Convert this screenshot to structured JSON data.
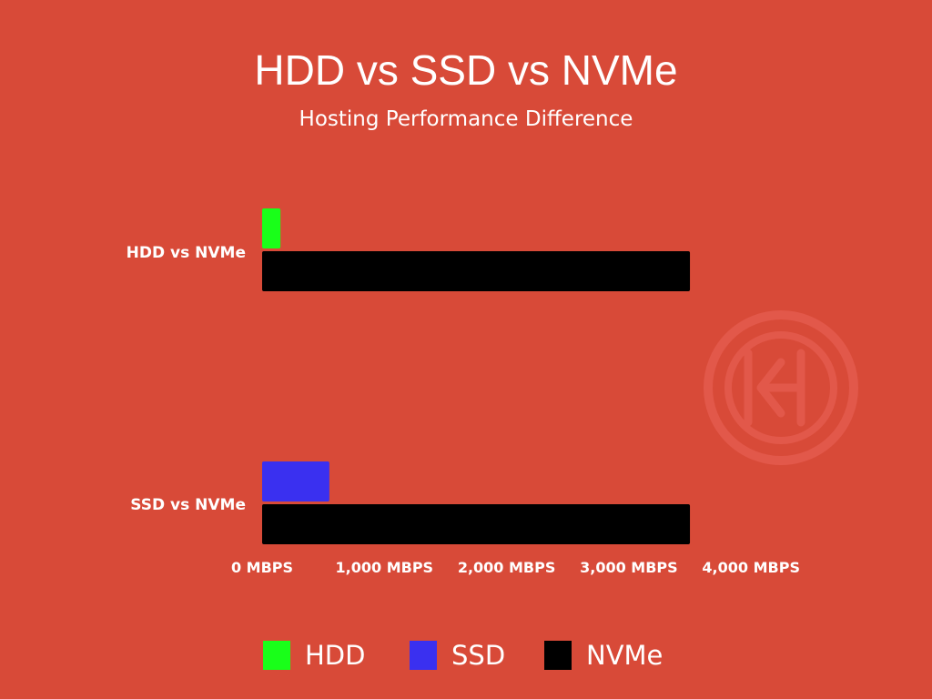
{
  "colors": {
    "background": "#d84a38",
    "hdd": "#19ff19",
    "ssd": "#3a30f0",
    "nvme": "#000000",
    "text": "#ffffff",
    "watermark": "#e0574a"
  },
  "chart_data": {
    "type": "bar",
    "orientation": "horizontal",
    "title": "HDD vs SSD vs NVMe",
    "subtitle": "Hosting Performance Difference",
    "categories": [
      "HDD vs NVMe",
      "SSD vs NVMe"
    ],
    "series": [
      {
        "name": "HDD",
        "values": [
          150,
          null
        ]
      },
      {
        "name": "SSD",
        "values": [
          null,
          550
        ]
      },
      {
        "name": "NVMe",
        "values": [
          3500,
          3500
        ]
      }
    ],
    "xlim": [
      0,
      4000
    ],
    "xticks": [
      0,
      1000,
      2000,
      3000,
      4000
    ],
    "xtick_labels": [
      "0 MBPS",
      "1,000 MBPS",
      "2,000 MBPS",
      "3,000 MBPS",
      "4,000 MBPS"
    ],
    "xlabel": "",
    "ylabel": "",
    "grid": false,
    "legend_position": "bottom-center"
  }
}
